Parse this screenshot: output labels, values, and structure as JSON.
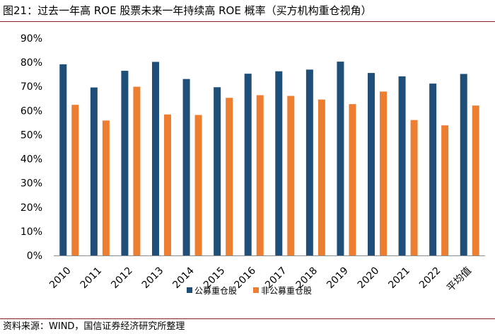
{
  "figure": {
    "title": "图21：过去一年高 ROE 股票未来一年持续高 ROE 概率（买方机构重仓视角）",
    "source": "资料来源：WIND，国信证券经济研究所整理"
  },
  "chart_data": {
    "type": "bar",
    "title": "过去一年高 ROE 股票未来一年持续高 ROE 概率（买方机构重仓视角）",
    "xlabel": "",
    "ylabel": "",
    "categories": [
      "2010",
      "2011",
      "2012",
      "2013",
      "2014",
      "2015",
      "2016",
      "2017",
      "2018",
      "2019",
      "2020",
      "2021",
      "2022",
      "平均值"
    ],
    "series": [
      {
        "name": "公募重仓股",
        "color": "#1f4e79",
        "values": [
          79.2,
          69.6,
          76.5,
          80.2,
          73.1,
          69.7,
          75.3,
          76.3,
          77.0,
          80.3,
          75.6,
          74.2,
          71.2,
          75.2
        ]
      },
      {
        "name": "非公募重仓股",
        "color": "#ed7d31",
        "values": [
          62.4,
          55.9,
          69.9,
          58.4,
          58.2,
          65.3,
          66.4,
          66.1,
          64.6,
          62.7,
          67.9,
          56.1,
          53.9,
          62.1
        ]
      }
    ],
    "ylim": [
      0,
      90
    ],
    "yticks": [
      0,
      10,
      20,
      30,
      40,
      50,
      60,
      70,
      80,
      90
    ],
    "ytick_labels": [
      "0%",
      "10%",
      "20%",
      "30%",
      "40%",
      "50%",
      "60%",
      "70%",
      "80%",
      "90%"
    ],
    "grid": false,
    "legend_position": "bottom-center"
  }
}
